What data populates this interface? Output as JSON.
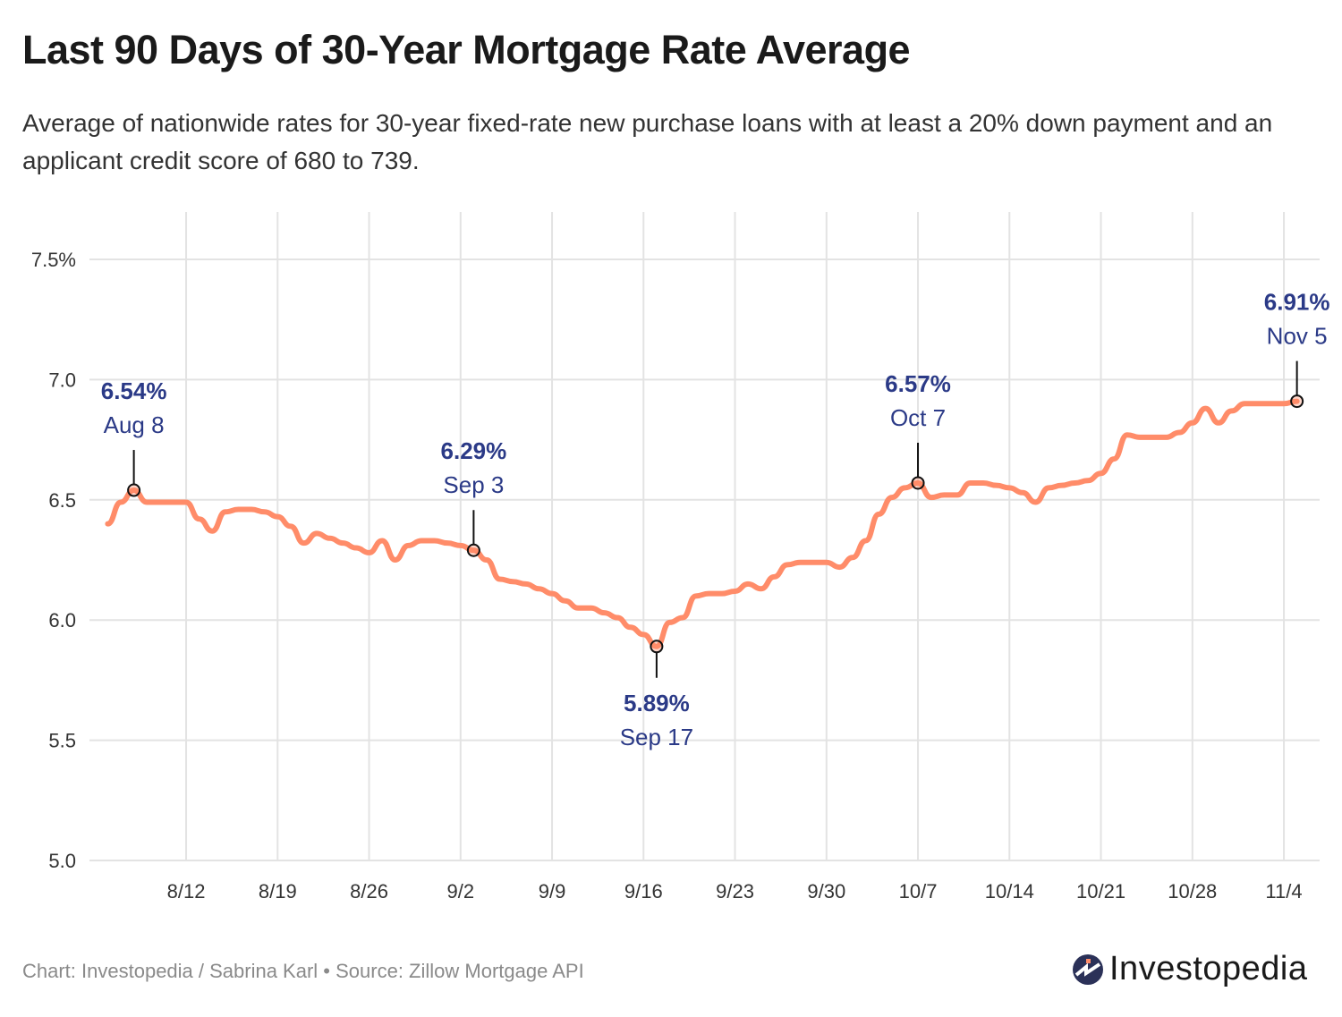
{
  "header": {
    "title": "Last 90 Days of 30-Year Mortgage Rate Average",
    "subtitle": "Average of nationwide rates for 30-year fixed-rate new purchase loans with at least a 20% down payment and an applicant credit score of 680 to 739."
  },
  "footer": {
    "credit": "Chart: Investopedia / Sabrina Karl • Source: Zillow Mortgage API",
    "logo_text": "Investopedia"
  },
  "colors": {
    "line": "#ff8c69",
    "annotation_text": "#2b3a87",
    "grid": "#e3e3e3",
    "logo_mark": "#2b3158",
    "logo_accent": "#ff8c69"
  },
  "chart_data": {
    "type": "line",
    "title": "Last 90 Days of 30-Year Mortgage Rate Average",
    "xlabel": "",
    "ylabel": "",
    "ylim": [
      5.0,
      7.5
    ],
    "yticks": [
      5.0,
      5.5,
      6.0,
      6.5,
      7.0,
      7.5
    ],
    "ytick_labels": [
      "5.0",
      "5.5",
      "6.0",
      "6.5",
      "7.0",
      "7.5%"
    ],
    "xticks": [
      "8/12",
      "8/19",
      "8/26",
      "9/2",
      "9/9",
      "9/16",
      "9/23",
      "9/30",
      "10/7",
      "10/14",
      "10/21",
      "10/28",
      "11/4"
    ],
    "grid": true,
    "x": [
      "8/6",
      "8/7",
      "8/8",
      "8/9",
      "8/10",
      "8/11",
      "8/12",
      "8/13",
      "8/14",
      "8/15",
      "8/16",
      "8/17",
      "8/18",
      "8/19",
      "8/20",
      "8/21",
      "8/22",
      "8/23",
      "8/24",
      "8/25",
      "8/26",
      "8/27",
      "8/28",
      "8/29",
      "8/30",
      "8/31",
      "9/1",
      "9/2",
      "9/3",
      "9/4",
      "9/5",
      "9/6",
      "9/7",
      "9/8",
      "9/9",
      "9/10",
      "9/11",
      "9/12",
      "9/13",
      "9/14",
      "9/15",
      "9/16",
      "9/17",
      "9/18",
      "9/19",
      "9/20",
      "9/21",
      "9/22",
      "9/23",
      "9/24",
      "9/25",
      "9/26",
      "9/27",
      "9/28",
      "9/29",
      "9/30",
      "10/1",
      "10/2",
      "10/3",
      "10/4",
      "10/5",
      "10/6",
      "10/7",
      "10/8",
      "10/9",
      "10/10",
      "10/11",
      "10/12",
      "10/13",
      "10/14",
      "10/15",
      "10/16",
      "10/17",
      "10/18",
      "10/19",
      "10/20",
      "10/21",
      "10/22",
      "10/23",
      "10/24",
      "10/25",
      "10/26",
      "10/27",
      "10/28",
      "10/29",
      "10/30",
      "10/31",
      "11/1",
      "11/2",
      "11/3",
      "11/4",
      "11/5"
    ],
    "values": [
      6.4,
      6.49,
      6.54,
      6.49,
      6.49,
      6.49,
      6.49,
      6.42,
      6.37,
      6.45,
      6.46,
      6.46,
      6.45,
      6.43,
      6.39,
      6.32,
      6.36,
      6.34,
      6.32,
      6.3,
      6.28,
      6.33,
      6.25,
      6.31,
      6.33,
      6.33,
      6.32,
      6.31,
      6.29,
      6.25,
      6.17,
      6.16,
      6.15,
      6.13,
      6.11,
      6.08,
      6.05,
      6.05,
      6.03,
      6.01,
      5.97,
      5.94,
      5.89,
      5.99,
      6.01,
      6.1,
      6.11,
      6.11,
      6.12,
      6.15,
      6.13,
      6.18,
      6.23,
      6.24,
      6.24,
      6.24,
      6.22,
      6.26,
      6.33,
      6.44,
      6.51,
      6.55,
      6.57,
      6.51,
      6.52,
      6.52,
      6.57,
      6.57,
      6.56,
      6.55,
      6.53,
      6.49,
      6.55,
      6.56,
      6.57,
      6.58,
      6.61,
      6.67,
      6.77,
      6.76,
      6.76,
      6.76,
      6.78,
      6.82,
      6.88,
      6.82,
      6.87,
      6.9,
      6.9,
      6.9,
      6.9,
      6.91
    ],
    "annotations": [
      {
        "x": "8/8",
        "value": 6.54,
        "value_label": "6.54%",
        "date_label": "Aug 8",
        "position": "above"
      },
      {
        "x": "9/3",
        "value": 6.29,
        "value_label": "6.29%",
        "date_label": "Sep 3",
        "position": "above"
      },
      {
        "x": "9/17",
        "value": 5.89,
        "value_label": "5.89%",
        "date_label": "Sep 17",
        "position": "below"
      },
      {
        "x": "10/7",
        "value": 6.57,
        "value_label": "6.57%",
        "date_label": "Oct 7",
        "position": "above"
      },
      {
        "x": "11/5",
        "value": 6.91,
        "value_label": "6.91%",
        "date_label": "Nov 5",
        "position": "above"
      }
    ]
  }
}
